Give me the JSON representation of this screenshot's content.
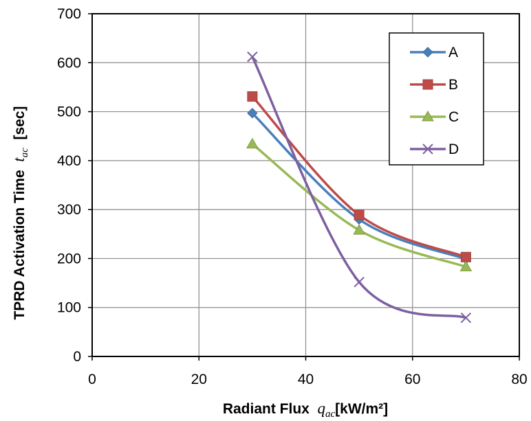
{
  "chart_data": {
    "type": "line",
    "xlabel": {
      "main": "Radiant Flux",
      "symbol": "q",
      "subscript": "ac",
      "unit": "[kW/m²]"
    },
    "ylabel": {
      "main": "TPRD Activation Time",
      "symbol": "t",
      "subscript": "ac",
      "unit": "[sec]"
    },
    "xlim": [
      0,
      80
    ],
    "ylim": [
      0,
      700
    ],
    "xticks": [
      0,
      20,
      40,
      60,
      80
    ],
    "yticks": [
      0,
      100,
      200,
      300,
      400,
      500,
      600,
      700
    ],
    "grid": true,
    "smooth": true,
    "legend_position": "top-right",
    "series": [
      {
        "name": "A",
        "color": "#4a7ebb",
        "marker": "diamond",
        "x": [
          30,
          50,
          70
        ],
        "y": [
          497,
          280,
          199
        ]
      },
      {
        "name": "B",
        "color": "#be4b48",
        "marker": "square",
        "x": [
          30,
          50,
          70
        ],
        "y": [
          531,
          289,
          203
        ]
      },
      {
        "name": "C",
        "color": "#98b954",
        "marker": "triangle",
        "x": [
          30,
          50,
          70
        ],
        "y": [
          434,
          258,
          183
        ]
      },
      {
        "name": "D",
        "color": "#7d60a0",
        "marker": "x",
        "x": [
          30,
          50,
          70
        ],
        "y": [
          612,
          152,
          79
        ]
      }
    ]
  }
}
